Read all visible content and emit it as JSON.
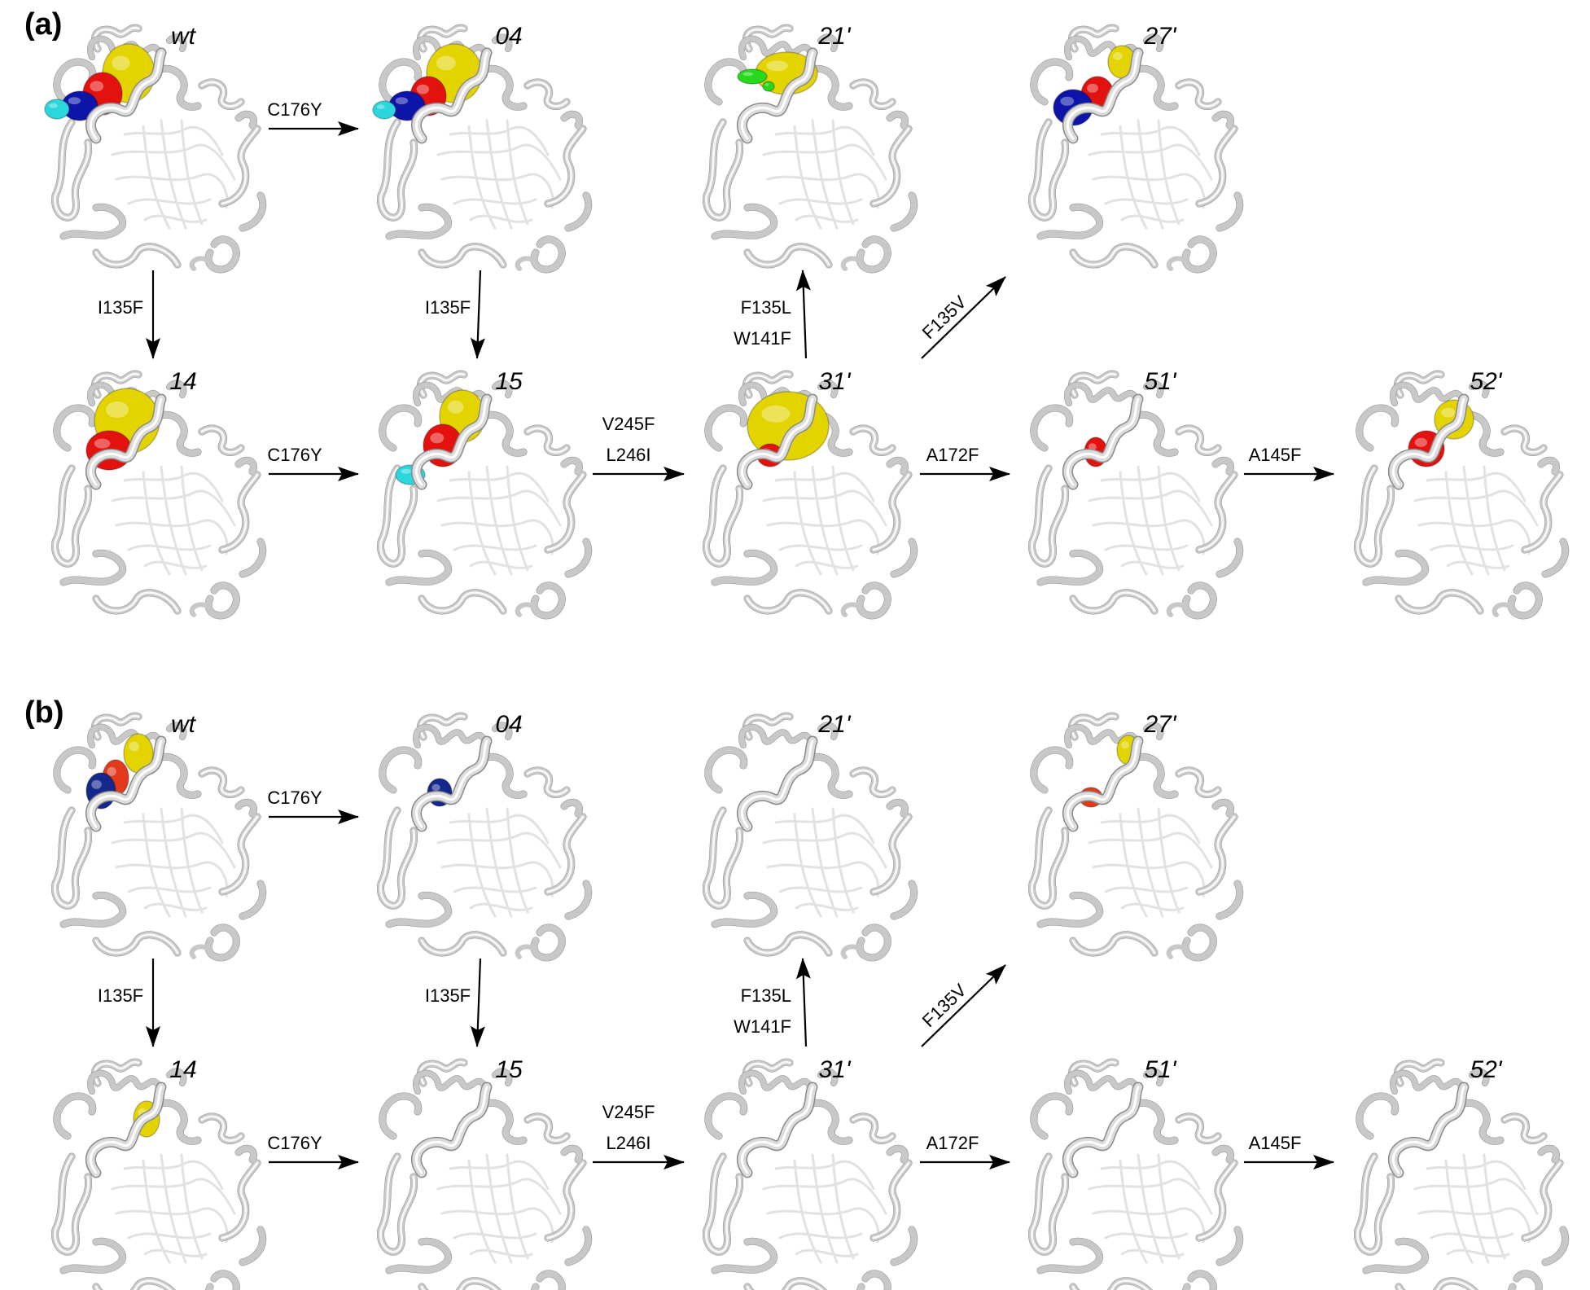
{
  "colors": {
    "yellow": "#e3d400",
    "red": "#e3120f",
    "blue": "#0c15a8",
    "cyan": "#2ad7dc",
    "green": "#26d91c",
    "navy": "#14288c",
    "orange_red": "#e23a1a",
    "ribbon": "#c8c8c8"
  },
  "panels": [
    {
      "label": "(a)",
      "structures": [
        {
          "name": "wt",
          "blobs": [
            {
              "color": "yellow",
              "x": 100,
              "y": 60,
              "rx": 32,
              "ry": 36
            },
            {
              "color": "red",
              "x": 68,
              "y": 85,
              "rx": 24,
              "ry": 26
            },
            {
              "color": "blue",
              "x": 40,
              "y": 100,
              "rx": 22,
              "ry": 18
            },
            {
              "color": "cyan",
              "x": 12,
              "y": 104,
              "rx": 15,
              "ry": 12
            }
          ]
        },
        {
          "name": "04",
          "blobs": [
            {
              "color": "yellow",
              "x": 100,
              "y": 60,
              "rx": 34,
              "ry": 36
            },
            {
              "color": "red",
              "x": 68,
              "y": 88,
              "rx": 22,
              "ry": 24
            },
            {
              "color": "blue",
              "x": 42,
              "y": 100,
              "rx": 22,
              "ry": 18
            },
            {
              "color": "cyan",
              "x": 14,
              "y": 105,
              "rx": 14,
              "ry": 11
            }
          ]
        },
        {
          "name": "21'",
          "blobs": [
            {
              "color": "yellow",
              "x": 108,
              "y": 60,
              "rx": 38,
              "ry": 26
            },
            {
              "color": "green",
              "x": 66,
              "y": 64,
              "rx": 18,
              "ry": 9
            },
            {
              "color": "green",
              "x": 86,
              "y": 76,
              "rx": 7,
              "ry": 6
            }
          ]
        },
        {
          "name": "27'",
          "blobs": [
            {
              "color": "yellow",
              "x": 120,
              "y": 46,
              "rx": 17,
              "ry": 20
            },
            {
              "color": "red",
              "x": 90,
              "y": 86,
              "rx": 20,
              "ry": 22
            },
            {
              "color": "blue",
              "x": 60,
              "y": 102,
              "rx": 24,
              "ry": 22
            }
          ]
        },
        {
          "name": "14",
          "blobs": [
            {
              "color": "yellow",
              "x": 98,
              "y": 62,
              "rx": 40,
              "ry": 40
            },
            {
              "color": "red",
              "x": 76,
              "y": 98,
              "rx": 28,
              "ry": 24
            }
          ]
        },
        {
          "name": "15",
          "blobs": [
            {
              "color": "yellow",
              "x": 110,
              "y": 56,
              "rx": 28,
              "ry": 32
            },
            {
              "color": "red",
              "x": 86,
              "y": 92,
              "rx": 24,
              "ry": 26
            },
            {
              "color": "cyan",
              "x": 46,
              "y": 128,
              "rx": 18,
              "ry": 12
            }
          ]
        },
        {
          "name": "31'",
          "blobs": [
            {
              "color": "yellow",
              "x": 110,
              "y": 68,
              "rx": 50,
              "ry": 42
            },
            {
              "color": "red",
              "x": 88,
              "y": 104,
              "rx": 16,
              "ry": 14
            }
          ]
        },
        {
          "name": "51'",
          "blobs": [
            {
              "color": "red",
              "x": 88,
              "y": 100,
              "rx": 14,
              "ry": 18
            }
          ]
        },
        {
          "name": "52'",
          "blobs": [
            {
              "color": "yellow",
              "x": 128,
              "y": 60,
              "rx": 24,
              "ry": 24
            },
            {
              "color": "red",
              "x": 94,
              "y": 96,
              "rx": 22,
              "ry": 22
            }
          ]
        }
      ],
      "mutations": [
        {
          "id": "m1",
          "lines": [
            "C176Y"
          ]
        },
        {
          "id": "m2",
          "lines": [
            "I135F"
          ]
        },
        {
          "id": "m3",
          "lines": [
            "I135F"
          ]
        },
        {
          "id": "m4",
          "lines": [
            "C176Y"
          ]
        },
        {
          "id": "m5",
          "lines": [
            "V245F",
            "L246I"
          ]
        },
        {
          "id": "m6",
          "lines": [
            "F135L",
            "W141F"
          ]
        },
        {
          "id": "m7",
          "lines": [
            "F135V"
          ]
        },
        {
          "id": "m8",
          "lines": [
            "A172F"
          ]
        },
        {
          "id": "m9",
          "lines": [
            "A145F"
          ]
        }
      ]
    },
    {
      "label": "(b)",
      "structures": [
        {
          "name": "wt",
          "blobs": [
            {
              "color": "yellow",
              "x": 112,
              "y": 50,
              "rx": 18,
              "ry": 24
            },
            {
              "color": "orange_red",
              "x": 84,
              "y": 80,
              "rx": 16,
              "ry": 22
            },
            {
              "color": "navy",
              "x": 66,
              "y": 96,
              "rx": 18,
              "ry": 22
            }
          ]
        },
        {
          "name": "04",
          "blobs": [
            {
              "color": "navy",
              "x": 82,
              "y": 98,
              "rx": 15,
              "ry": 17
            }
          ]
        },
        {
          "name": "21'",
          "blobs": []
        },
        {
          "name": "27'",
          "blobs": [
            {
              "color": "yellow",
              "x": 128,
              "y": 46,
              "rx": 14,
              "ry": 18
            },
            {
              "color": "orange_red",
              "x": 82,
              "y": 104,
              "rx": 14,
              "ry": 12
            }
          ]
        },
        {
          "name": "14",
          "blobs": [
            {
              "color": "yellow",
              "x": 122,
              "y": 74,
              "rx": 16,
              "ry": 22
            }
          ]
        },
        {
          "name": "15",
          "blobs": []
        },
        {
          "name": "31'",
          "blobs": []
        },
        {
          "name": "51'",
          "blobs": []
        },
        {
          "name": "52'",
          "blobs": []
        }
      ],
      "mutations": [
        {
          "id": "m1",
          "lines": [
            "C176Y"
          ]
        },
        {
          "id": "m2",
          "lines": [
            "I135F"
          ]
        },
        {
          "id": "m3",
          "lines": [
            "I135F"
          ]
        },
        {
          "id": "m4",
          "lines": [
            "C176Y"
          ]
        },
        {
          "id": "m5",
          "lines": [
            "V245F",
            "L246I"
          ]
        },
        {
          "id": "m6",
          "lines": [
            "F135L",
            "W141F"
          ]
        },
        {
          "id": "m7",
          "lines": [
            "F135V"
          ]
        },
        {
          "id": "m8",
          "lines": [
            "A172F"
          ]
        },
        {
          "id": "m9",
          "lines": [
            "A145F"
          ]
        }
      ]
    }
  ]
}
